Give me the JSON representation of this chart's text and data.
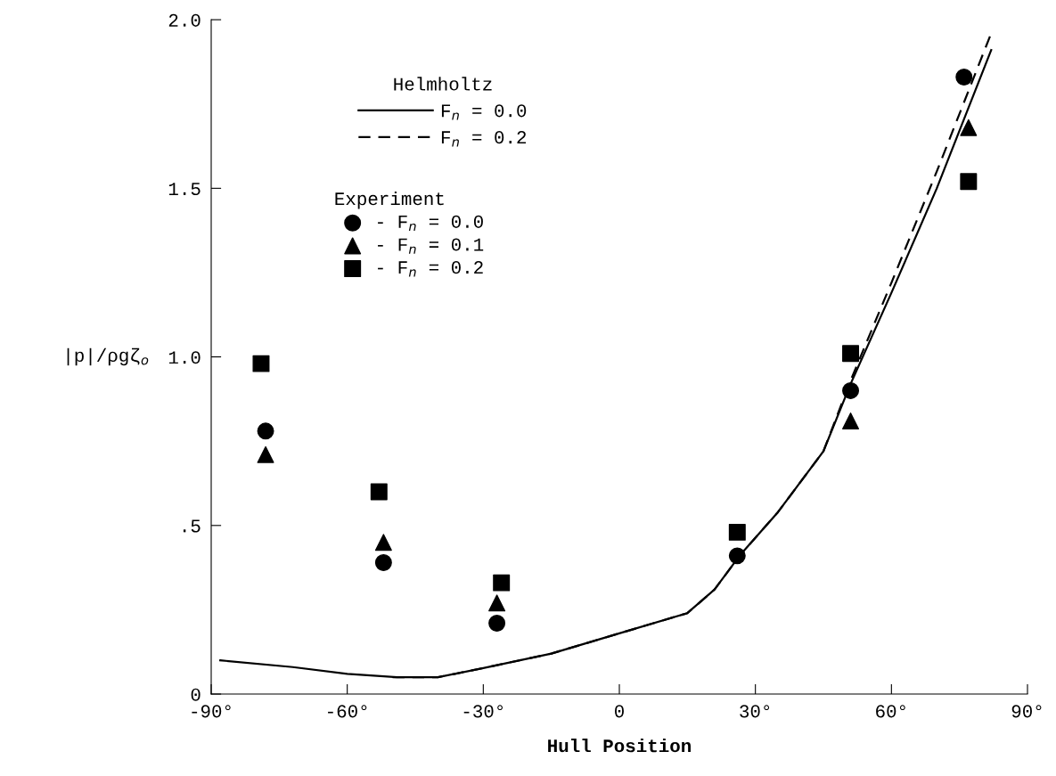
{
  "chart_data": {
    "type": "scatter",
    "xlabel": "Hull Position",
    "ylabel": "|p|/ρgζ$_{o}$",
    "legend_title": "Helmholtz",
    "annotations": [
      "Experiment"
    ],
    "xlim": [
      -90,
      90
    ],
    "ylim": [
      0,
      2
    ],
    "xticks": [
      {
        "value": -90,
        "label": "-90°"
      },
      {
        "value": -60,
        "label": "-60°"
      },
      {
        "value": -30,
        "label": "-30°"
      },
      {
        "value": 0,
        "label": "0"
      },
      {
        "value": 30,
        "label": "30°"
      },
      {
        "value": 60,
        "label": "60°"
      },
      {
        "value": 90,
        "label": "90°"
      }
    ],
    "yticks": [
      {
        "value": 0,
        "label": "0"
      },
      {
        "value": 0.5,
        "label": ".5"
      },
      {
        "value": 1,
        "label": "1.0"
      },
      {
        "value": 1.5,
        "label": "1.5"
      },
      {
        "value": 2,
        "label": "2.0"
      }
    ],
    "grid": false,
    "legend": "top left",
    "series": [
      {
        "type": "line",
        "name": "F$_{n}$ = 0.0",
        "color": "#000000",
        "line_style": "solid",
        "marker": "none",
        "x": [
          -88,
          -72,
          -60,
          -49,
          -40,
          -30,
          -15,
          0,
          15,
          21,
          26.5,
          35,
          45,
          51,
          60,
          70,
          82
        ],
        "values": [
          0.1,
          0.08,
          0.06,
          0.05,
          0.05,
          0.077,
          0.12,
          0.18,
          0.24,
          0.31,
          0.41,
          0.54,
          0.72,
          0.92,
          1.19,
          1.5,
          1.91
        ]
      },
      {
        "type": "line",
        "name": "F$_{n}$ = 0.2",
        "color": "#000000",
        "line_style": "dashed",
        "marker": "none",
        "x": [
          -50,
          -40,
          -30,
          -15,
          0,
          15,
          21,
          26.5,
          35,
          45,
          51,
          60,
          70,
          82
        ],
        "values": [
          0.05,
          0.05,
          0.077,
          0.12,
          0.18,
          0.24,
          0.31,
          0.41,
          0.54,
          0.72,
          0.93,
          1.22,
          1.55,
          1.96
        ]
      },
      {
        "name": "- F$_{n}$ = 0.0",
        "color": "#000000",
        "marker": "circle",
        "x": [
          -78,
          -52,
          -27,
          26,
          51,
          76
        ],
        "values": [
          0.78,
          0.39,
          0.21,
          0.41,
          0.9,
          1.83
        ]
      },
      {
        "name": "- F$_{n}$ = 0.1",
        "color": "#000000",
        "marker": "triangle",
        "x": [
          -78,
          -52,
          -27,
          51,
          77
        ],
        "values": [
          0.71,
          0.45,
          0.27,
          0.81,
          1.68
        ]
      },
      {
        "name": "- F$_{n}$ = 0.2",
        "color": "#000000",
        "marker": "square",
        "x": [
          -79,
          -53,
          -26,
          26,
          51,
          77
        ],
        "values": [
          0.98,
          0.6,
          0.33,
          0.48,
          1.01,
          1.52
        ]
      }
    ]
  }
}
